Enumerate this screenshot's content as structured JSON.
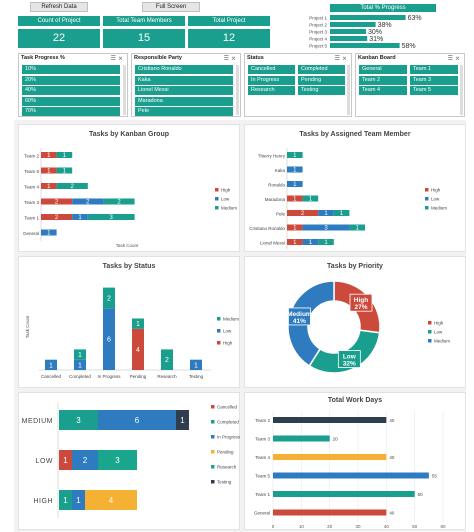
{
  "colors": {
    "teal": "#1a9e8e",
    "red": "#cc4a3b",
    "blue": "#2e7bbf",
    "orange": "#f5b133",
    "dark": "#2f3e4e",
    "green": "#1aa68c"
  },
  "toolbar": {
    "refresh_label": "Refresh Data",
    "fullscreen_label": "Full Screen"
  },
  "kpis": [
    {
      "label": "Count of Project",
      "value": "22"
    },
    {
      "label": "Total Team Members",
      "value": "15"
    },
    {
      "label": "Total Project",
      "value": "12"
    }
  ],
  "progress": {
    "title": "Total % Progress",
    "items": [
      {
        "name": "Project 1",
        "value": 0.63,
        "label": "63%"
      },
      {
        "name": "Project 2",
        "value": 0.38,
        "label": "38%"
      },
      {
        "name": "Project 3",
        "value": 0.3,
        "label": "30%"
      },
      {
        "name": "Project 4",
        "value": 0.31,
        "label": "31%"
      },
      {
        "name": "Project 5",
        "value": 0.58,
        "label": "58%"
      }
    ]
  },
  "slicers": [
    {
      "title": "Task Progress %",
      "cols": 1,
      "items": [
        "10%",
        "20%",
        "40%",
        "60%",
        "70%"
      ]
    },
    {
      "title": "Responsible Party",
      "cols": 1,
      "items": [
        "Cristiano Ronaldo",
        "Kaka",
        "Lionel Messi",
        "Maradona",
        "Pele"
      ]
    },
    {
      "title": "Status",
      "cols": 2,
      "items": [
        "Cancelled",
        "Completed",
        "In Progress",
        "Pending",
        "Research",
        "Testing"
      ]
    },
    {
      "title": "Kanban Board",
      "cols": 2,
      "items": [
        "General",
        "Team 1",
        "Team 2",
        "Team 3",
        "Team 4",
        "Team 5"
      ]
    }
  ],
  "charts": {
    "kanban": {
      "title": "Tasks by Kanban Group",
      "xlabel": "Task Count"
    },
    "member": {
      "title": "Tasks by Assigned Team Member"
    },
    "status": {
      "title": "Tasks by Status",
      "ylabel": "Task Count"
    },
    "priority": {
      "title": "Tasks by Priority"
    },
    "workdays": {
      "title": "Total Work Days"
    }
  },
  "chart_data": [
    {
      "id": "kanban",
      "type": "bar",
      "title": "Tasks by Kanban Group",
      "xlabel": "Task Count",
      "categories": [
        "General",
        "Team 1",
        "Team 3",
        "Team 4",
        "Team 5",
        "Team 2"
      ],
      "series": [
        {
          "name": "High",
          "values": [
            0,
            2,
            2,
            1,
            1,
            1
          ]
        },
        {
          "name": "Low",
          "values": [
            1,
            1,
            2,
            0,
            0,
            0
          ]
        },
        {
          "name": "Medium",
          "values": [
            0,
            3,
            2,
            2,
            1,
            1
          ]
        }
      ],
      "legend": "right"
    },
    {
      "id": "member",
      "type": "bar",
      "title": "Tasks by Assigned Team Member",
      "categories": [
        "Lionel Messi",
        "Cristiano Ronaldo",
        "Pele",
        "Maradona",
        "Ronaldo",
        "Kaka",
        "Thierry Henry"
      ],
      "series": [
        {
          "name": "High",
          "values": [
            1,
            1,
            2,
            1,
            0,
            0,
            0
          ]
        },
        {
          "name": "Low",
          "values": [
            1,
            3,
            1,
            0,
            1,
            1,
            0
          ]
        },
        {
          "name": "Medium",
          "values": [
            1,
            1,
            1,
            1,
            0,
            0,
            1
          ]
        }
      ],
      "legend": "right"
    },
    {
      "id": "status",
      "type": "bar",
      "title": "Tasks by Status",
      "ylabel": "Task Count",
      "categories": [
        "Cancelled",
        "Completed",
        "In Progress",
        "Pending",
        "Research",
        "Testing"
      ],
      "series": [
        {
          "name": "Medium",
          "values": [
            0,
            1,
            2,
            1,
            2,
            0
          ]
        },
        {
          "name": "Low",
          "values": [
            1,
            1,
            6,
            0,
            0,
            1
          ]
        },
        {
          "name": "High",
          "values": [
            0,
            0,
            0,
            4,
            0,
            0
          ]
        }
      ],
      "legend": "right"
    },
    {
      "id": "priority",
      "type": "pie",
      "title": "Tasks by Priority",
      "categories": [
        "High",
        "Low",
        "Medium"
      ],
      "values": [
        27,
        32,
        41
      ],
      "labels": [
        "27%",
        "32%",
        "41%"
      ],
      "legend": "right"
    },
    {
      "id": "stacked-priority",
      "type": "bar",
      "categories": [
        "MEDIUM",
        "LOW",
        "HIGH"
      ],
      "series": [
        {
          "name": "Cancelled",
          "values": [
            0,
            1,
            0
          ]
        },
        {
          "name": "Completed",
          "values": [
            3,
            0,
            1
          ]
        },
        {
          "name": "In Progress",
          "values": [
            6,
            2,
            1
          ]
        },
        {
          "name": "Pending",
          "values": [
            0,
            0,
            4
          ]
        },
        {
          "name": "Research",
          "values": [
            0,
            3,
            0
          ]
        },
        {
          "name": "Testing",
          "values": [
            1,
            0,
            0
          ]
        }
      ],
      "legend": "right"
    },
    {
      "id": "workdays",
      "type": "bar",
      "title": "Total Work Days",
      "categories": [
        "Team 2",
        "Team 3",
        "Team 4",
        "Team 5",
        "Team 1",
        "General"
      ],
      "values": [
        40,
        20,
        40,
        55,
        50,
        40
      ],
      "xlim": [
        0,
        60
      ],
      "xticks": [
        "0",
        "10",
        "20",
        "30",
        "40",
        "50",
        "60"
      ]
    }
  ]
}
